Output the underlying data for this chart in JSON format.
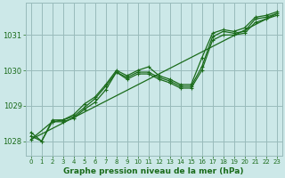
{
  "bg_color": "#cce8e8",
  "plot_bg_color": "#cce8e8",
  "grid_color": "#99bbbb",
  "line_color": "#1a6b1a",
  "marker_color": "#1a6b1a",
  "xlabel": "Graphe pression niveau de la mer (hPa)",
  "xlim": [
    -0.5,
    23.5
  ],
  "ylim": [
    1027.6,
    1031.9
  ],
  "yticks": [
    1028,
    1029,
    1030,
    1031
  ],
  "xticks": [
    0,
    1,
    2,
    3,
    4,
    5,
    6,
    7,
    8,
    9,
    10,
    11,
    12,
    13,
    14,
    15,
    16,
    17,
    18,
    19,
    20,
    21,
    22,
    23
  ],
  "series1_x": [
    0,
    1,
    2,
    3,
    4,
    5,
    6,
    7,
    8,
    9,
    10,
    11,
    12,
    13,
    14,
    15,
    16,
    17,
    18,
    19,
    20,
    21,
    22,
    23
  ],
  "series1_y": [
    1028.25,
    1028.0,
    1028.6,
    1028.6,
    1028.75,
    1029.05,
    1029.25,
    1029.6,
    1030.0,
    1029.85,
    1030.0,
    1030.1,
    1029.85,
    1029.75,
    1029.6,
    1029.6,
    1030.35,
    1031.05,
    1031.15,
    1031.1,
    1031.2,
    1031.5,
    1031.55,
    1031.65
  ],
  "series2_x": [
    0,
    2,
    3,
    4,
    5,
    6,
    7,
    8,
    9,
    10,
    11,
    12,
    13,
    14,
    15,
    16,
    17,
    18,
    19,
    20,
    21,
    22,
    23
  ],
  "series2_y": [
    1028.05,
    1028.55,
    1028.55,
    1028.65,
    1028.9,
    1029.1,
    1029.45,
    1029.95,
    1029.75,
    1029.9,
    1029.9,
    1029.75,
    1029.65,
    1029.5,
    1029.5,
    1030.0,
    1030.85,
    1031.0,
    1031.0,
    1031.05,
    1031.35,
    1031.45,
    1031.55
  ],
  "series3_x": [
    0,
    23
  ],
  "series3_y": [
    1028.05,
    1031.6
  ],
  "series4_x": [
    0,
    1,
    2,
    3,
    4,
    5,
    6,
    7,
    8,
    9,
    10,
    11,
    12,
    13,
    14,
    15,
    16,
    17,
    18,
    19,
    20,
    21,
    22,
    23
  ],
  "series4_y": [
    1028.15,
    1028.0,
    1028.55,
    1028.6,
    1028.7,
    1028.95,
    1029.2,
    1029.55,
    1029.95,
    1029.8,
    1029.95,
    1029.95,
    1029.8,
    1029.7,
    1029.55,
    1029.55,
    1030.1,
    1030.95,
    1031.1,
    1031.05,
    1031.1,
    1031.45,
    1031.5,
    1031.6
  ]
}
